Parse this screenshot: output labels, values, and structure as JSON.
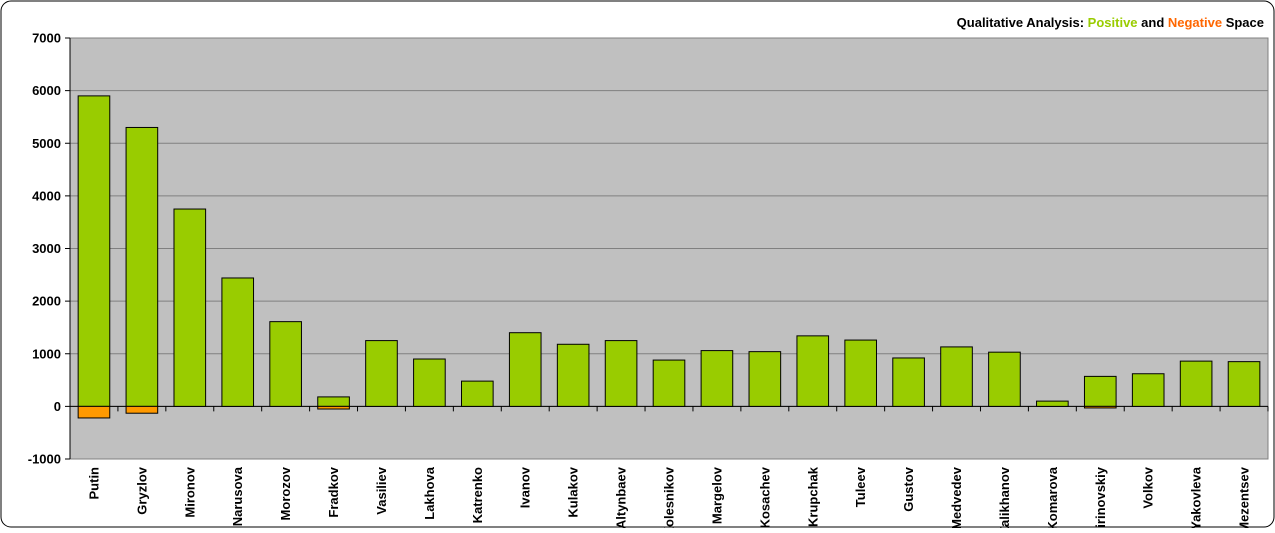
{
  "chart_data": {
    "type": "bar",
    "title_parts": [
      {
        "text": "Qualitative Analysis: ",
        "color": "#000000"
      },
      {
        "text": "Positive",
        "color": "#99CC00"
      },
      {
        "text": " and ",
        "color": "#000000"
      },
      {
        "text": "Negative",
        "color": "#FF6600"
      },
      {
        "text": " Space",
        "color": "#000000"
      }
    ],
    "categories": [
      "Putin",
      "Gryzlov",
      "Mironov",
      "Narusova",
      "Morozov",
      "Fradkov",
      "Vasiliev",
      "Lakhova",
      "Katrenko",
      "Ivanov",
      "Kulakov",
      "Altynbaev",
      "Kolesnikov",
      "Margelov",
      "Kosachev",
      "Krupchak",
      "Tuleev",
      "Gustov",
      "Medvedev",
      "Zalikhanov",
      "Komarova",
      "Zhirinovskiy",
      "Volkov",
      "Yakovleva",
      "Mezentsev"
    ],
    "series": [
      {
        "name": "Positive",
        "color": "#99CC00",
        "values": [
          5900,
          5300,
          3750,
          2440,
          1610,
          180,
          1250,
          900,
          480,
          1400,
          1180,
          1250,
          880,
          1060,
          1040,
          1340,
          1260,
          920,
          1130,
          1030,
          100,
          570,
          620,
          860,
          850
        ]
      },
      {
        "name": "Negative",
        "color": "#FF9900",
        "values": [
          -220,
          -130,
          0,
          0,
          0,
          -50,
          0,
          0,
          0,
          0,
          0,
          0,
          0,
          0,
          0,
          0,
          0,
          0,
          0,
          0,
          0,
          -30,
          0,
          0,
          0
        ]
      }
    ],
    "ylim": [
      -1000,
      7000
    ],
    "yticks": [
      7000,
      6000,
      5000,
      4000,
      3000,
      2000,
      1000,
      0,
      -1000
    ],
    "grid": true,
    "plot_background": "#C0C0C0"
  }
}
